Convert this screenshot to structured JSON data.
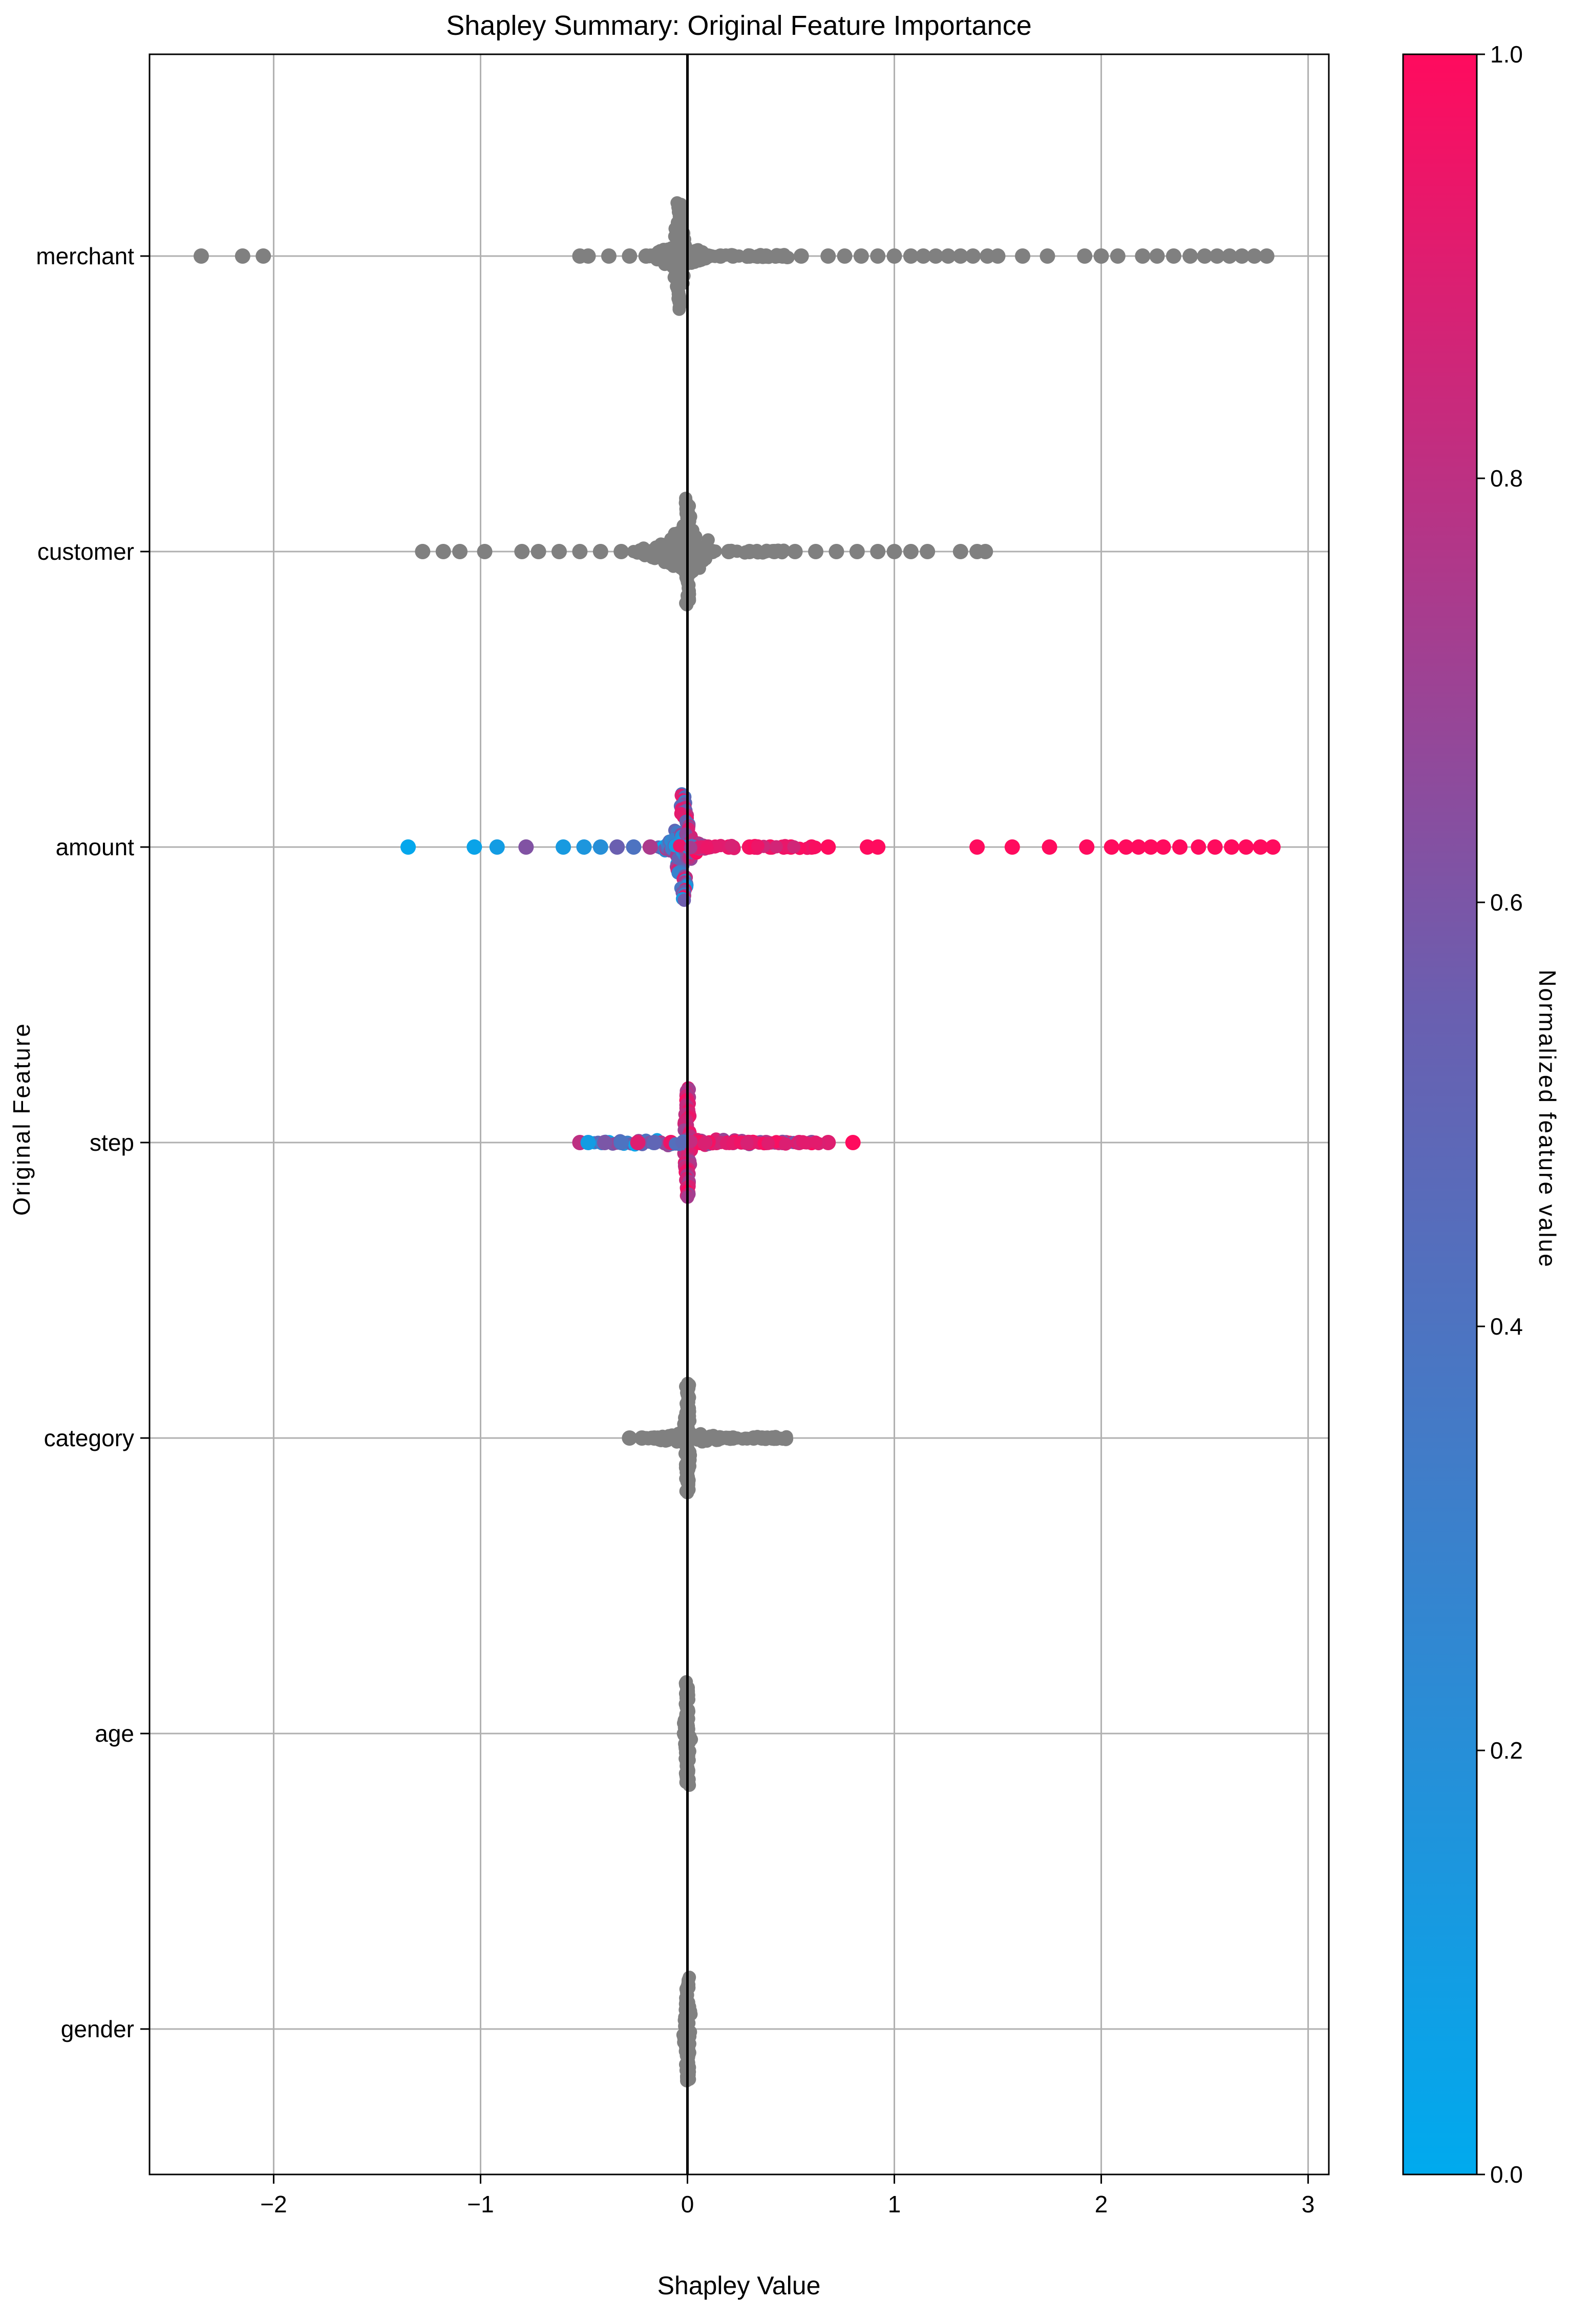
{
  "chart_data": {
    "type": "scatter",
    "subtype": "shap-beeswarm",
    "title": "Shapley Summary: Original Feature Importance",
    "xlabel": "Shapley Value",
    "ylabel": "Original Feature",
    "xlim": [
      -2.6,
      3.1
    ],
    "xticks": [
      -2,
      -1,
      0,
      1,
      2,
      3
    ],
    "xtick_labels": [
      "−2",
      "−1",
      "0",
      "1",
      "2",
      "3"
    ],
    "grid": true,
    "zero_line": 0,
    "features": [
      "merchant",
      "customer",
      "amount",
      "step",
      "category",
      "age",
      "gender"
    ],
    "colorbar": {
      "label": "Normalized feature value",
      "range": [
        0,
        1
      ],
      "ticks": [
        0.0,
        0.2,
        0.4,
        0.6,
        0.8,
        1.0
      ],
      "tick_labels": [
        "0.0",
        "0.2",
        "0.4",
        "0.6",
        "0.8",
        "1.0"
      ],
      "low_color": "#00aaee",
      "high_color": "#ff0b5e"
    },
    "neutral_color": "#808080",
    "series": [
      {
        "name": "merchant",
        "colored": false,
        "tail": [
          -2.35,
          -2.15,
          -2.05,
          -0.52,
          -0.48,
          -0.38,
          -0.28,
          -0.2,
          -0.12,
          0.1,
          0.16,
          0.22,
          0.3,
          0.38,
          0.46,
          0.55,
          0.68,
          0.76,
          0.84,
          0.92,
          1.0,
          1.08,
          1.14,
          1.2,
          1.26,
          1.32,
          1.38,
          1.45,
          1.5,
          1.62,
          1.74,
          1.92,
          2.0,
          2.08,
          2.2,
          2.27,
          2.35,
          2.43,
          2.5,
          2.56,
          2.62,
          2.68,
          2.74,
          2.8
        ],
        "core": {
          "center": -0.04,
          "width": 0.09,
          "up": 0.36,
          "down": 0.36
        },
        "shoulder": {
          "from": -0.2,
          "to": 0.12,
          "height": 0.1
        }
      },
      {
        "name": "customer",
        "colored": false,
        "tail": [
          -1.28,
          -1.18,
          -1.1,
          -0.98,
          -0.8,
          -0.72,
          -0.62,
          -0.52,
          -0.42,
          -0.32,
          0.12,
          0.2,
          0.3,
          0.42,
          0.52,
          0.62,
          0.72,
          0.82,
          0.92,
          1.0,
          1.08,
          1.16,
          1.32,
          1.4,
          1.44
        ],
        "core": {
          "center": 0.0,
          "width": 0.09,
          "up": 0.36,
          "down": 0.36
        },
        "shoulder": {
          "from": -0.26,
          "to": 0.1,
          "height": 0.16
        }
      },
      {
        "name": "amount",
        "colored": true,
        "tail": [
          {
            "x": -1.35,
            "v": 0.02
          },
          {
            "x": -1.03,
            "v": 0.05
          },
          {
            "x": -0.92,
            "v": 0.1
          },
          {
            "x": -0.78,
            "v": 0.62
          },
          {
            "x": -0.6,
            "v": 0.12
          },
          {
            "x": -0.5,
            "v": 0.15
          },
          {
            "x": -0.42,
            "v": 0.2
          },
          {
            "x": -0.34,
            "v": 0.55
          },
          {
            "x": -0.26,
            "v": 0.4
          },
          {
            "x": -0.18,
            "v": 0.75
          },
          {
            "x": 0.1,
            "v": 0.9
          },
          {
            "x": 0.2,
            "v": 0.95
          },
          {
            "x": 0.3,
            "v": 0.97
          },
          {
            "x": 0.4,
            "v": 0.98
          },
          {
            "x": 0.5,
            "v": 0.99
          },
          {
            "x": 0.6,
            "v": 1.0
          },
          {
            "x": 0.68,
            "v": 1.0
          },
          {
            "x": 0.87,
            "v": 1.0
          },
          {
            "x": 0.92,
            "v": 1.0
          },
          {
            "x": 1.4,
            "v": 1.0
          },
          {
            "x": 1.57,
            "v": 1.0
          },
          {
            "x": 1.75,
            "v": 1.0
          },
          {
            "x": 1.93,
            "v": 1.0
          },
          {
            "x": 2.05,
            "v": 1.0
          },
          {
            "x": 2.12,
            "v": 1.0
          },
          {
            "x": 2.18,
            "v": 1.0
          },
          {
            "x": 2.24,
            "v": 1.0
          },
          {
            "x": 2.3,
            "v": 1.0
          },
          {
            "x": 2.38,
            "v": 1.0
          },
          {
            "x": 2.47,
            "v": 1.0
          },
          {
            "x": 2.55,
            "v": 1.0
          },
          {
            "x": 2.63,
            "v": 1.0
          },
          {
            "x": 2.7,
            "v": 1.0
          },
          {
            "x": 2.77,
            "v": 1.0
          },
          {
            "x": 2.83,
            "v": 1.0
          }
        ],
        "core": {
          "center": -0.02,
          "width": 0.13,
          "up": 0.36,
          "down": 0.36
        },
        "shoulder": {
          "from": -0.14,
          "to": 0.1,
          "height": 0.1
        }
      },
      {
        "name": "step",
        "colored": true,
        "tail": [
          {
            "x": -0.52,
            "v": 0.8
          },
          {
            "x": -0.48,
            "v": 0.1
          },
          {
            "x": -0.4,
            "v": 0.6
          },
          {
            "x": -0.32,
            "v": 0.4
          },
          {
            "x": -0.24,
            "v": 0.9
          },
          {
            "x": -0.16,
            "v": 0.5
          },
          {
            "x": -0.08,
            "v": 0.95
          },
          {
            "x": 0.06,
            "v": 1.0
          },
          {
            "x": 0.14,
            "v": 0.9
          },
          {
            "x": 0.22,
            "v": 0.7
          },
          {
            "x": 0.3,
            "v": 1.0
          },
          {
            "x": 0.38,
            "v": 0.8
          },
          {
            "x": 0.46,
            "v": 0.6
          },
          {
            "x": 0.54,
            "v": 0.9
          },
          {
            "x": 0.6,
            "v": 0.65
          },
          {
            "x": 0.68,
            "v": 0.9
          },
          {
            "x": 0.8,
            "v": 1.0
          }
        ],
        "core": {
          "center": 0.0,
          "width": 0.05,
          "up": 0.37,
          "down": 0.37
        },
        "shoulder": {
          "from": -0.45,
          "to": 0.62,
          "height": 0.03
        }
      },
      {
        "name": "category",
        "colored": false,
        "tail": [
          -0.28,
          -0.22,
          -0.16,
          -0.1,
          0.1,
          0.16,
          0.22,
          0.32,
          0.36,
          0.41
        ],
        "core": {
          "center": 0.0,
          "width": 0.05,
          "up": 0.37,
          "down": 0.37
        },
        "shoulder": {
          "from": -0.22,
          "to": 0.24,
          "height": 0.04
        }
      },
      {
        "name": "age",
        "colored": false,
        "tail": [],
        "core": {
          "center": 0.0,
          "width": 0.05,
          "up": 0.35,
          "down": 0.35
        },
        "shoulder": {
          "from": 0,
          "to": 0,
          "height": 0
        }
      },
      {
        "name": "gender",
        "colored": false,
        "tail": [],
        "core": {
          "center": 0.0,
          "width": 0.05,
          "up": 0.35,
          "down": 0.35
        },
        "shoulder": {
          "from": 0,
          "to": 0,
          "height": 0
        }
      }
    ]
  }
}
